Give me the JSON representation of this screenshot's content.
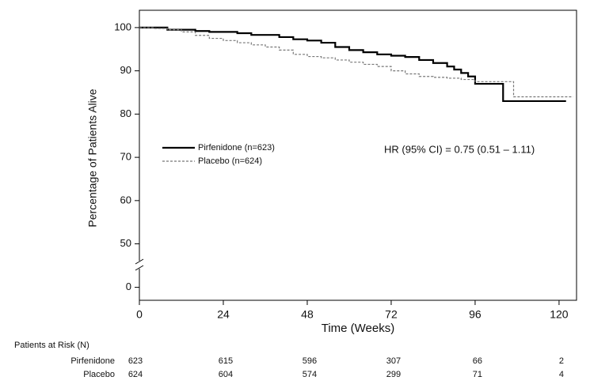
{
  "chart_data": {
    "type": "step",
    "xlabel": "Time (Weeks)",
    "ylabel": "Percentage of Patients Alive",
    "xlim": [
      0,
      125
    ],
    "xticks": [
      0,
      24,
      48,
      72,
      96,
      120
    ],
    "ylim": [
      -3,
      104
    ],
    "yticks": [
      0,
      50,
      60,
      70,
      80,
      90,
      100
    ],
    "y_axis_break": true,
    "series": [
      {
        "name": "Pirfenidone (n=623)",
        "color": "#000000",
        "line_style": "solid",
        "x": [
          0,
          8,
          16,
          20,
          28,
          32,
          40,
          44,
          48,
          52,
          56,
          60,
          64,
          68,
          72,
          76,
          80,
          84,
          88,
          90,
          92,
          94,
          96,
          100,
          104,
          122
        ],
        "values": [
          100,
          99.5,
          99.2,
          99,
          98.7,
          98.3,
          97.8,
          97.3,
          97,
          96.5,
          95.5,
          94.8,
          94.3,
          93.8,
          93.5,
          93.2,
          92.5,
          91.8,
          91,
          90.3,
          89.5,
          88.7,
          87,
          87,
          83,
          83
        ]
      },
      {
        "name": "Placebo (n=624)",
        "color": "#777777",
        "line_style": "dashed",
        "x": [
          0,
          4,
          8,
          12,
          16,
          20,
          24,
          28,
          32,
          36,
          40,
          44,
          48,
          52,
          56,
          60,
          64,
          68,
          72,
          76,
          80,
          84,
          88,
          92,
          96,
          107,
          124
        ],
        "values": [
          100,
          99.8,
          99.5,
          99,
          98.2,
          97.5,
          97,
          96.5,
          96,
          95.5,
          94.8,
          93.8,
          93.3,
          93,
          92.5,
          92,
          91.5,
          91,
          90,
          89.3,
          88.7,
          88.5,
          88.3,
          88,
          87.5,
          84,
          84
        ]
      }
    ],
    "annotation": "HR (95% CI) = 0.75 (0.51 – 1.11)",
    "risk_table": {
      "title": "Patients at Risk (N)",
      "rows": [
        {
          "name": "Pirfenidone",
          "values": [
            623,
            615,
            596,
            307,
            66,
            2
          ]
        },
        {
          "name": "Placebo",
          "values": [
            624,
            604,
            574,
            299,
            71,
            4
          ]
        }
      ]
    }
  }
}
